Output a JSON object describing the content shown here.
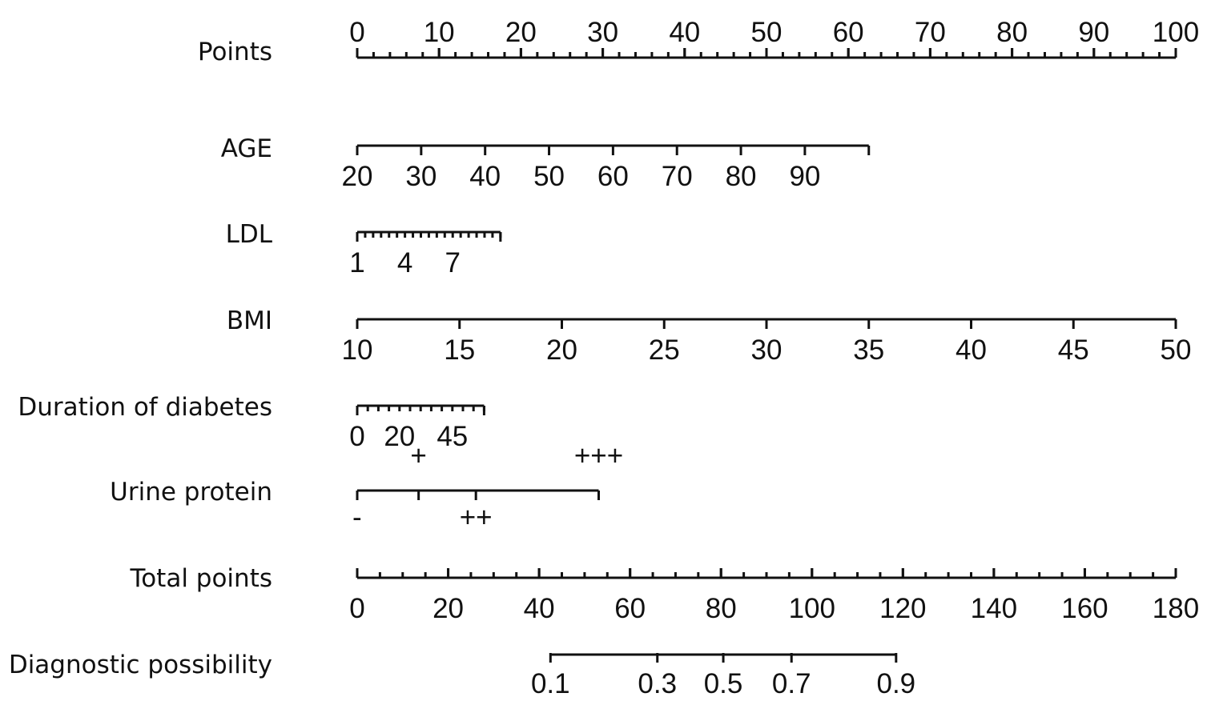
{
  "chart_data": {
    "type": "nomogram",
    "title": "",
    "rows": [
      {
        "name": "Points",
        "min": 0,
        "max": 100,
        "labels": [
          "0",
          "10",
          "20",
          "30",
          "40",
          "50",
          "60",
          "70",
          "80",
          "90",
          "100"
        ],
        "label_values": [
          0,
          10,
          20,
          30,
          40,
          50,
          60,
          70,
          80,
          90,
          100
        ],
        "label_position": "above",
        "minor_step": 2,
        "major_step": 10
      },
      {
        "name": "AGE",
        "min": 20,
        "max": 100,
        "points_start": 0,
        "points_end": 62.5,
        "labels": [
          "20",
          "30",
          "40",
          "50",
          "60",
          "70",
          "80",
          "90"
        ],
        "label_values": [
          20,
          30,
          40,
          50,
          60,
          70,
          80,
          90
        ],
        "label_position": "below",
        "major_step": 10
      },
      {
        "name": "LDL",
        "min": 1,
        "max": 10,
        "points_start": 0,
        "points_end": 17.5,
        "labels": [
          "1",
          "4",
          "7"
        ],
        "label_values": [
          1,
          4,
          7
        ],
        "label_position": "below",
        "minor_step": 0.5
      },
      {
        "name": "BMI",
        "min": 10,
        "max": 50,
        "points_start": 0,
        "points_end": 100,
        "labels": [
          "10",
          "15",
          "20",
          "25",
          "30",
          "35",
          "40",
          "45",
          "50"
        ],
        "label_values": [
          10,
          15,
          20,
          25,
          30,
          35,
          40,
          45,
          50
        ],
        "label_position": "below",
        "major_step": 5
      },
      {
        "name": "Duration of diabetes",
        "min": 0,
        "max": 60,
        "points_start": 0,
        "points_end": 15.5,
        "labels": [
          "0",
          "20",
          "45"
        ],
        "label_values": [
          0,
          20,
          45
        ],
        "label_position": "below",
        "minor_step": 5
      },
      {
        "name": "Urine protein",
        "categories": [
          {
            "label": "-",
            "points": 0,
            "position": "below"
          },
          {
            "label": "+",
            "points": 7.5,
            "position": "above"
          },
          {
            "label": "++",
            "points": 14.5,
            "position": "below"
          },
          {
            "label": "+++",
            "points": 29.5,
            "position": "above"
          }
        ]
      },
      {
        "name": "Total points",
        "min": 0,
        "max": 180,
        "labels": [
          "0",
          "20",
          "40",
          "60",
          "80",
          "100",
          "120",
          "140",
          "160",
          "180"
        ],
        "label_values": [
          0,
          20,
          40,
          60,
          80,
          100,
          120,
          140,
          160,
          180
        ],
        "label_position": "below",
        "minor_step": 5,
        "major_step": 20
      },
      {
        "name": "Diagnostic possibility",
        "labels": [
          "0.1",
          "0.3",
          "0.5",
          "0.7",
          "0.9"
        ],
        "label_values": [
          0.1,
          0.3,
          0.5,
          0.7,
          0.9
        ],
        "total_points": [
          42.5,
          66,
          80.5,
          95.5,
          118.5
        ],
        "label_position": "below"
      }
    ]
  }
}
